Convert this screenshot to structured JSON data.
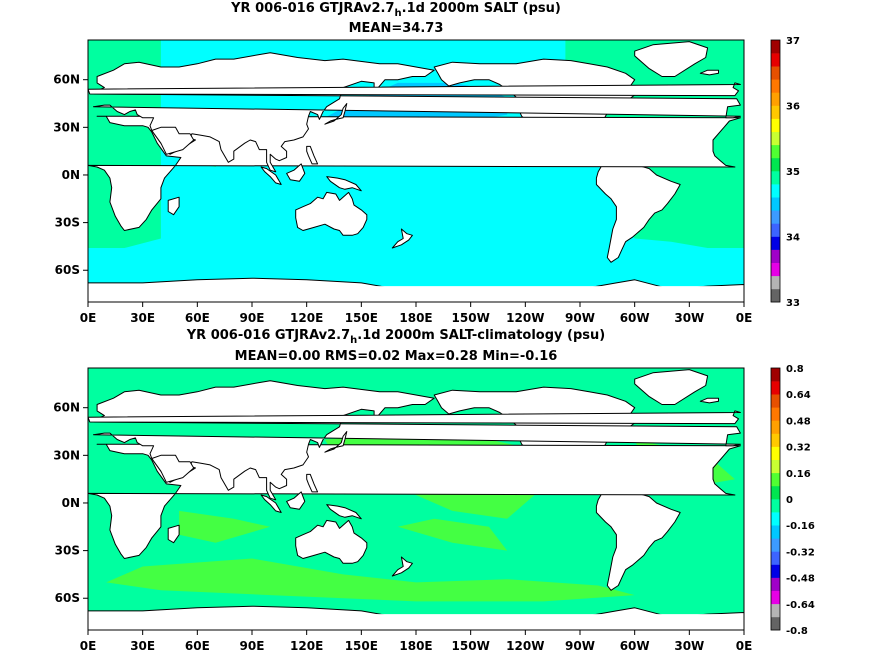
{
  "chart_data": [
    {
      "type": "heatmap",
      "title_pre": "YR 006-016 GTJRAv2.7",
      "title_sub": "h",
      "title_post": ".1d 2000m SALT (psu)",
      "subtitle": "MEAN=34.73",
      "x_ticks": [
        "0E",
        "30E",
        "60E",
        "90E",
        "120E",
        "150E",
        "180E",
        "150W",
        "120W",
        "90W",
        "60W",
        "30W",
        "0E"
      ],
      "y_ticks": [
        "60N",
        "30N",
        "0N",
        "30S",
        "60S"
      ],
      "y_values": [
        60,
        30,
        0,
        -30,
        -60
      ],
      "ylim": [
        -80,
        85
      ],
      "colorbar": {
        "range": [
          33,
          37
        ],
        "labels": [
          "37",
          "36",
          "35",
          "34",
          "33"
        ],
        "colors": [
          "#646464",
          "#b4b4b4",
          "#e600e6",
          "#a000c8",
          "#0000e6",
          "#3c64ff",
          "#3c9bff",
          "#00c8ff",
          "#00ffff",
          "#00ffa0",
          "#00e650",
          "#50ff32",
          "#c8ff32",
          "#ffff00",
          "#ffc800",
          "#ffa000",
          "#ff7800",
          "#e65000",
          "#e60000",
          "#a00000"
        ]
      },
      "field_colors": {
        "ocean_main": "#00ffff",
        "ocean_low": "#00c8ff",
        "ocean_high": "#00ffa0",
        "ocean_extra": "#00e650"
      }
    },
    {
      "type": "heatmap",
      "title_pre": "YR 006-016 GTJRAv2.7",
      "title_sub": "h",
      "title_post": ".1d 2000m SALT-climatology (psu)",
      "subtitle": "MEAN=0.00   RMS=0.02   Max=0.28   Min=-0.16",
      "x_ticks": [
        "0E",
        "30E",
        "60E",
        "90E",
        "120E",
        "150E",
        "180E",
        "150W",
        "120W",
        "90W",
        "60W",
        "30W",
        "0E"
      ],
      "y_ticks": [
        "60N",
        "30N",
        "0N",
        "30S",
        "60S"
      ],
      "y_values": [
        60,
        30,
        0,
        -30,
        -60
      ],
      "ylim": [
        -80,
        85
      ],
      "colorbar": {
        "range": [
          -0.8,
          0.8
        ],
        "labels": [
          "0.8",
          "0.64",
          "0.48",
          "0.32",
          "0.16",
          "0",
          "-0.16",
          "-0.32",
          "-0.48",
          "-0.64",
          "-0.8"
        ],
        "colors": [
          "#646464",
          "#b4b4b4",
          "#e600e6",
          "#a000c8",
          "#0000e6",
          "#3c64ff",
          "#3c9bff",
          "#00c8ff",
          "#00ffff",
          "#00ffa0",
          "#00e650",
          "#50ff32",
          "#c8ff32",
          "#ffff00",
          "#ffc800",
          "#ffa000",
          "#ff7800",
          "#e65000",
          "#e60000",
          "#a00000"
        ]
      },
      "field_colors": {
        "ocean_main": "#00ffa0",
        "ocean_low": "#00e650",
        "ocean_high": "#00ffa0",
        "ocean_extra": "#50ff32"
      }
    }
  ]
}
